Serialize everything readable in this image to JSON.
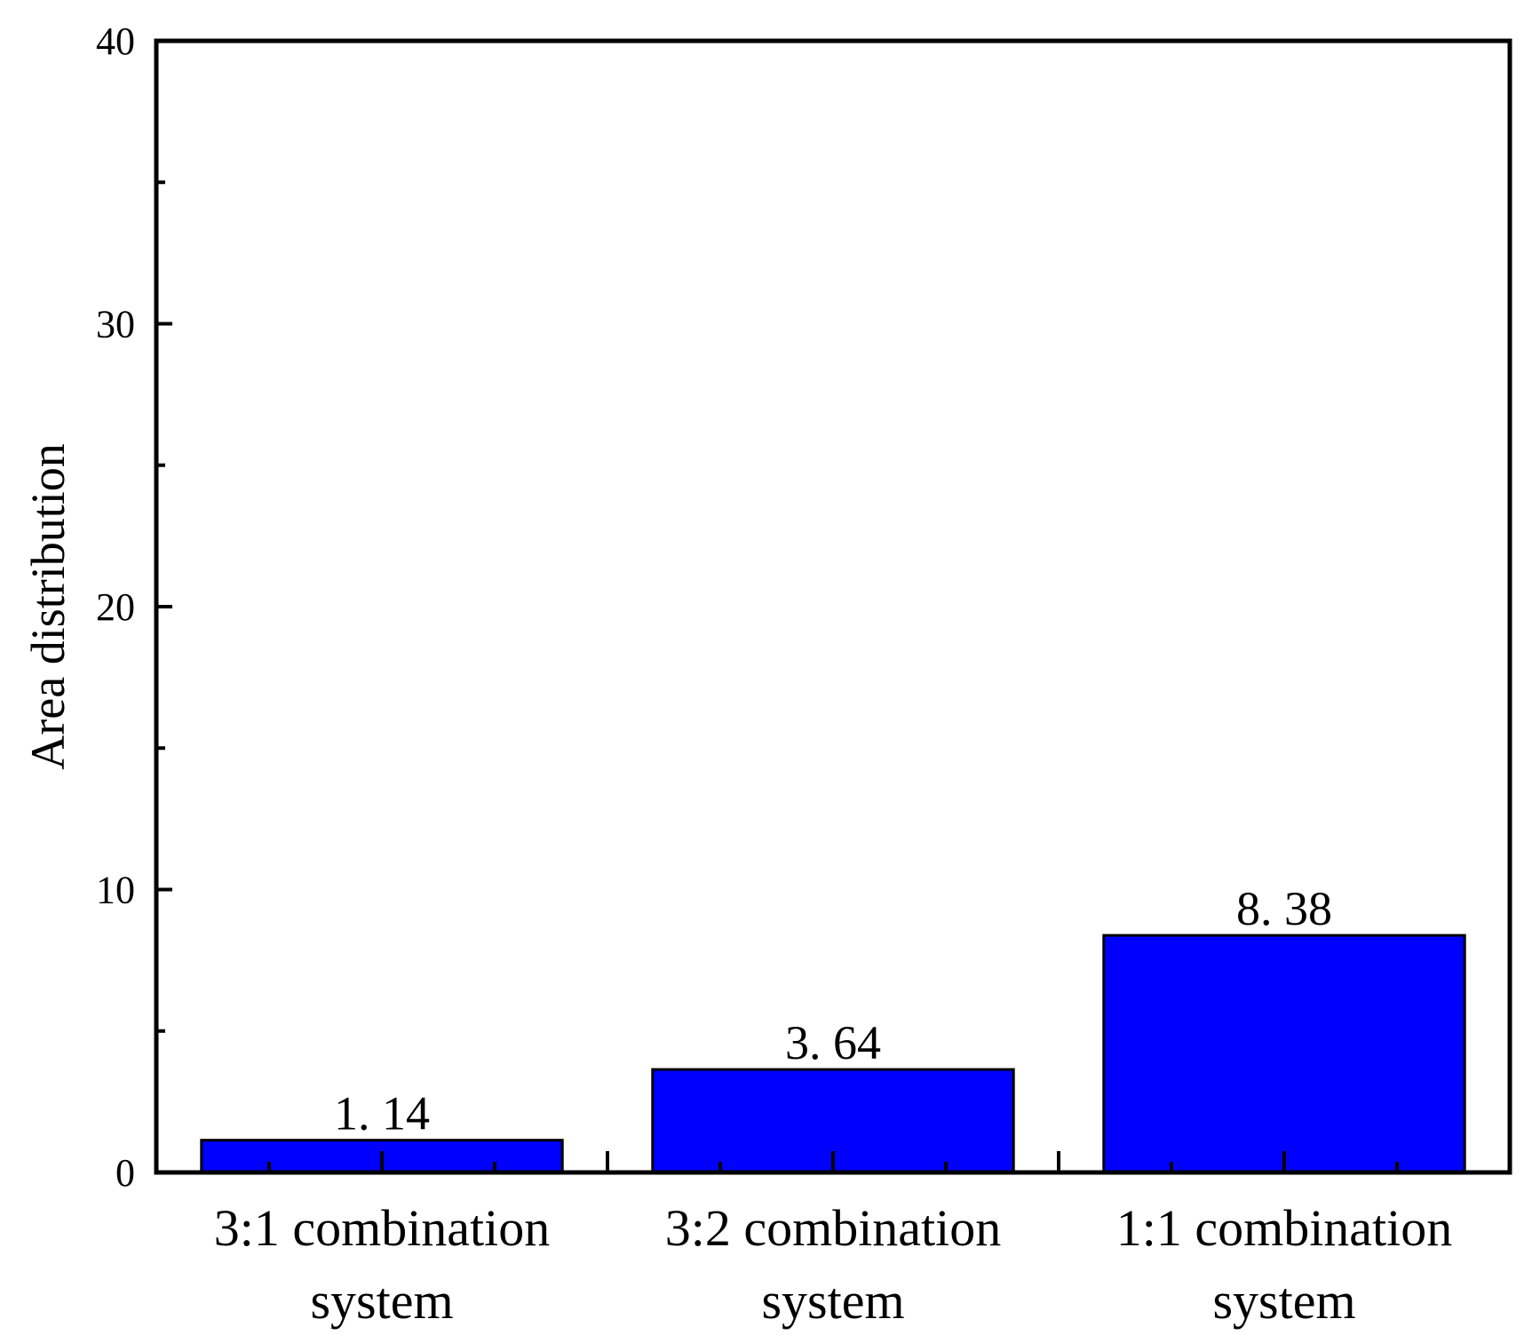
{
  "chart_data": {
    "type": "bar",
    "categories": [
      [
        "3:1 combination",
        "system"
      ],
      [
        "3:2 combination",
        "system"
      ],
      [
        "1:1 combination",
        "system"
      ]
    ],
    "values": [
      1.14,
      3.64,
      8.38
    ],
    "value_labels": [
      "1. 14",
      "3. 64",
      "8. 38"
    ],
    "ylabel": "Area distribution",
    "ylim": [
      0,
      40
    ],
    "yticks": [
      0,
      10,
      20,
      30,
      40
    ],
    "y_minor_step": 5,
    "bar_color": "#0000ff",
    "grid": false
  }
}
